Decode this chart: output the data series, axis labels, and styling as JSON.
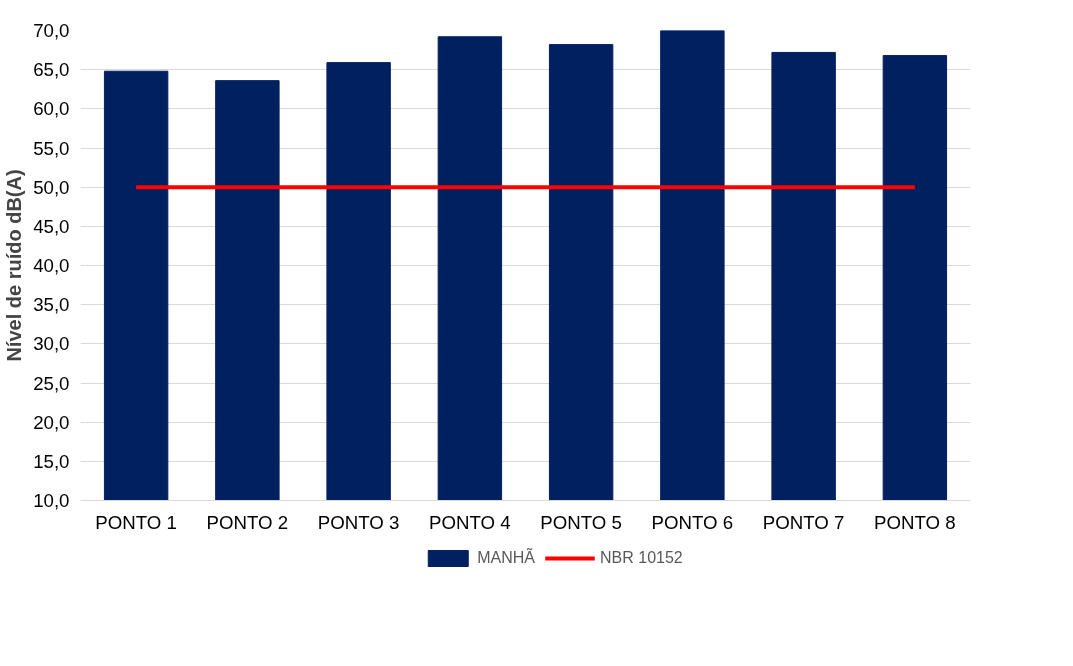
{
  "chart_data": {
    "type": "bar",
    "ylabel": "Nível de ruído dB(A)",
    "categories": [
      "PONTO 1",
      "PONTO 2",
      "PONTO 3",
      "PONTO 4",
      "PONTO 5",
      "PONTO 6",
      "PONTO 7",
      "PONTO 8"
    ],
    "series": [
      {
        "name": "MANHÃ",
        "color": "#002060",
        "values": [
          64.8,
          63.6,
          65.9,
          69.2,
          68.2,
          70.0,
          67.2,
          66.8
        ]
      },
      {
        "name": "NBR 10152",
        "type": "line",
        "color": "#ff0000",
        "values": [
          50,
          50,
          50,
          50,
          50,
          50,
          50,
          50
        ]
      }
    ],
    "ylim": [
      10,
      70
    ],
    "yticks": [
      {
        "value": 10,
        "label": "10,0"
      },
      {
        "value": 15,
        "label": "15,0"
      },
      {
        "value": 20,
        "label": "20,0"
      },
      {
        "value": 25,
        "label": "25,0"
      },
      {
        "value": 30,
        "label": "30,0"
      },
      {
        "value": 35,
        "label": "35,0"
      },
      {
        "value": 40,
        "label": "40,0"
      },
      {
        "value": 45,
        "label": "45,0"
      },
      {
        "value": 50,
        "label": "50,0"
      },
      {
        "value": 55,
        "label": "55,0"
      },
      {
        "value": 60,
        "label": "60,0"
      },
      {
        "value": 65,
        "label": "65,0"
      },
      {
        "value": 70,
        "label": "70,0"
      }
    ],
    "grid": "y",
    "legend": "bottom"
  }
}
